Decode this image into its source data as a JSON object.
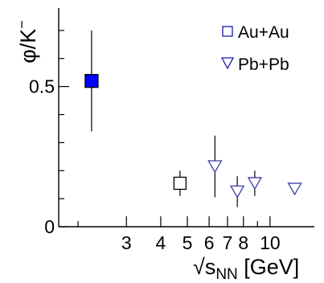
{
  "chart_data": {
    "type": "scatter",
    "xlabel_prefix": "√s",
    "xlabel_sub": "NN",
    "xlabel_suffix": " [GeV]",
    "ylabel_main": "φ/K",
    "ylabel_sup": "−",
    "x_scale": "log",
    "xlim": [
      1.7,
      14.5
    ],
    "ylim": [
      0,
      0.78
    ],
    "x_ticks": [
      {
        "value": 3,
        "label": "3"
      },
      {
        "value": 4,
        "label": "4"
      },
      {
        "value": 5,
        "label": "5"
      },
      {
        "value": 6,
        "label": "6"
      },
      {
        "value": 7,
        "label": "7"
      },
      {
        "value": 8,
        "label": "8"
      },
      {
        "value": 10,
        "label": "10"
      }
    ],
    "x_minor_ticks": [
      2,
      9
    ],
    "y_ticks": [
      {
        "value": 0,
        "label": "0"
      },
      {
        "value": 0.5,
        "label": "0.5"
      }
    ],
    "y_minor_ticks": [
      0.1,
      0.2,
      0.3,
      0.4,
      0.6,
      0.7
    ],
    "series": [
      {
        "name": "Au+Au",
        "marker": "square",
        "color": "#000000",
        "points": [
          {
            "x": 2.24,
            "y": 0.52,
            "err": 0.18,
            "filled": true,
            "fill": "#0000ff"
          },
          {
            "x": 4.7,
            "y": 0.155,
            "err": 0.045,
            "filled": false
          }
        ]
      },
      {
        "name": "Pb+Pb",
        "marker": "triangle-down",
        "color": "#3a3aaa",
        "points": [
          {
            "x": 6.3,
            "y": 0.215,
            "err": 0.11
          },
          {
            "x": 7.6,
            "y": 0.125,
            "err": 0.055
          },
          {
            "x": 8.8,
            "y": 0.155,
            "err": 0.045
          },
          {
            "x": 12.3,
            "y": 0.135,
            "err": 0.0
          }
        ]
      }
    ],
    "legend": {
      "position": "top-right",
      "entries": [
        {
          "label": "Au+Au",
          "marker": "square-open",
          "color": "#1a1aaa"
        },
        {
          "label": "Pb+Pb",
          "marker": "triangle-down-open",
          "color": "#1a1aaa"
        }
      ]
    },
    "grid": false
  }
}
